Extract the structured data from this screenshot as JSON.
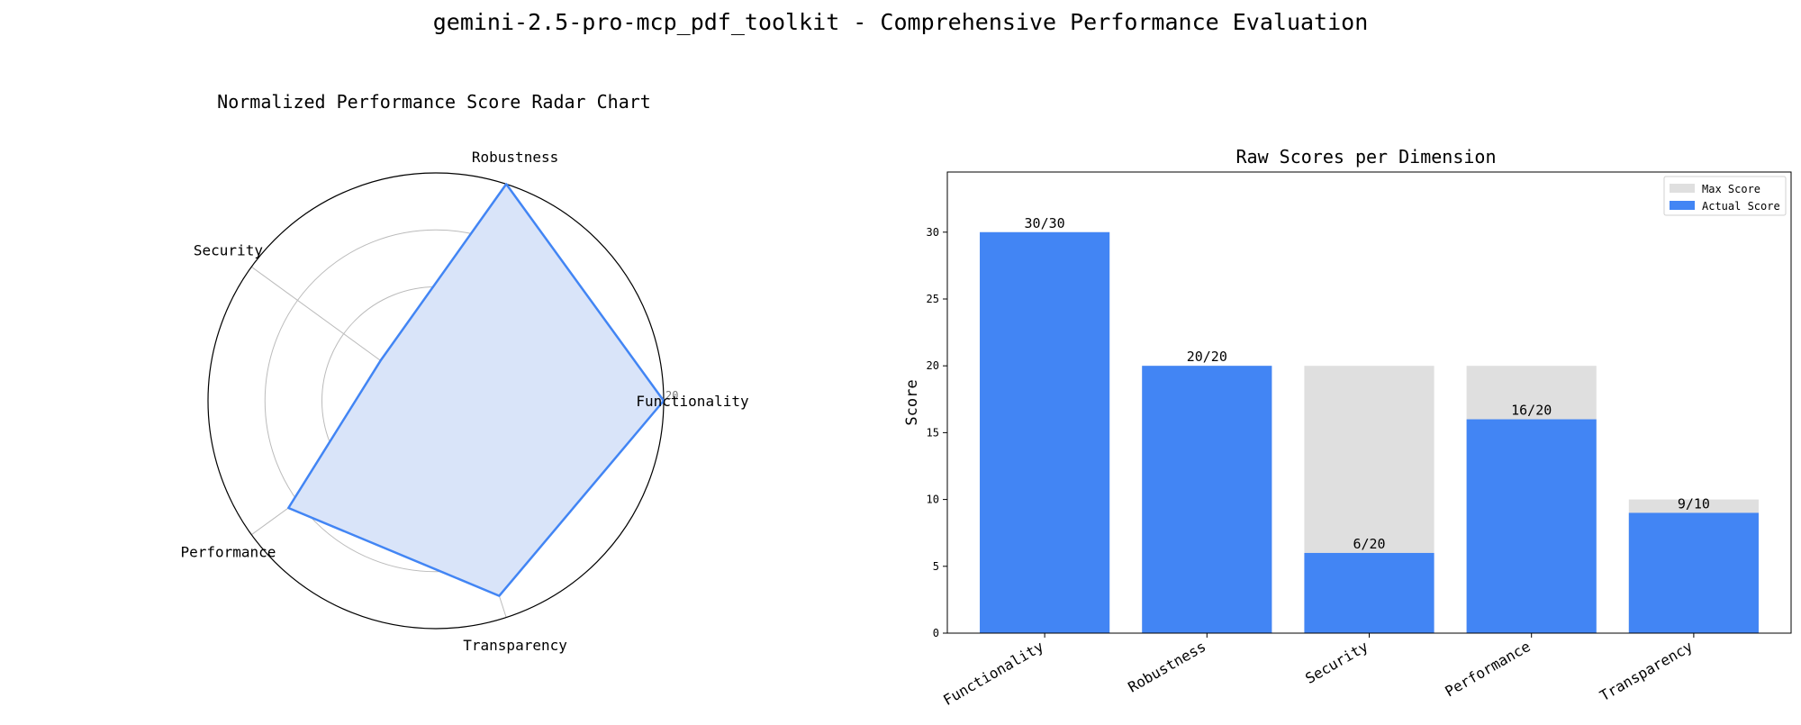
{
  "figure": {
    "suptitle": "gemini-2.5-pro-mcp_pdf_toolkit - Comprehensive Performance Evaluation"
  },
  "colors": {
    "actual": "#4285F4",
    "max": "#DFDFDF",
    "radar_fill": "#D9E4F9",
    "grid": "#BBBBBB"
  },
  "chart_data": [
    {
      "type": "radar",
      "title": "Normalized Performance Score Radar Chart",
      "axes": [
        "Functionality",
        "Robustness",
        "Security",
        "Performance",
        "Transparency"
      ],
      "values": [
        20,
        20,
        6,
        16,
        18
      ],
      "rticks": [
        "5",
        "10",
        "15",
        "20"
      ],
      "rlim": [
        0,
        20
      ],
      "grid": true
    },
    {
      "type": "bar",
      "title": "Raw Scores per Dimension",
      "categories": [
        "Functionality",
        "Robustness",
        "Security",
        "Performance",
        "Transparency"
      ],
      "series": [
        {
          "name": "Max Score",
          "values": [
            30,
            20,
            20,
            20,
            10
          ]
        },
        {
          "name": "Actual Score",
          "values": [
            30,
            20,
            6,
            16,
            9
          ]
        }
      ],
      "data_labels": [
        "30/30",
        "20/20",
        "6/20",
        "16/20",
        "9/10"
      ],
      "ylabel": "Score",
      "xlabel": "",
      "ylim": [
        0,
        34.5
      ],
      "yticks": [
        "0",
        "5",
        "10",
        "15",
        "20",
        "25",
        "30"
      ],
      "legend_position": "upper right",
      "grid": false
    }
  ]
}
